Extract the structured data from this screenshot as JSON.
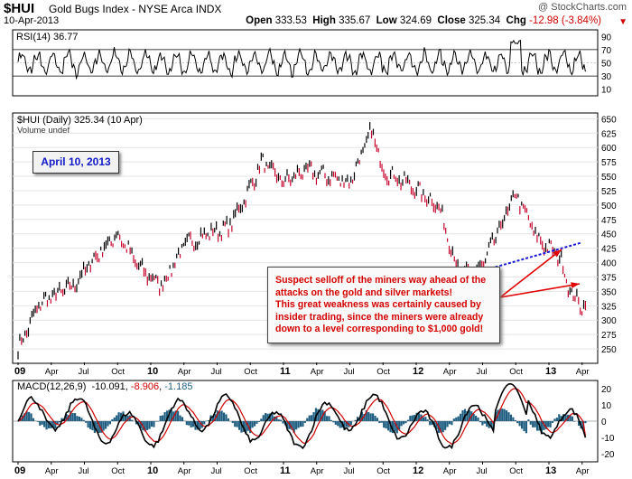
{
  "header": {
    "symbol": "$HUI",
    "name": "Gold Bugs Index - NYSE Arca INDX",
    "date": "10-Apr-2013",
    "open_label": "Open",
    "open": "333.53",
    "high_label": "High",
    "high": "335.67",
    "low_label": "Low",
    "low": "324.69",
    "close_label": "Close",
    "close": "325.34",
    "chg_label": "Chg",
    "chg": "-12.98 (-3.84%)",
    "brand": "@ StockCharts.com",
    "down_arrow_icon": "down-triangle-icon"
  },
  "rsi": {
    "label": "RSI(14) 36.77",
    "ticks": [
      "90",
      "70",
      "50",
      "30",
      "10"
    ],
    "color": "#000000",
    "ylim": [
      0,
      100
    ]
  },
  "price": {
    "label": "$HUI (Daily) 325.34 (10 Apr)",
    "volume_label": "Volume undef",
    "ticks": [
      "650",
      "625",
      "600",
      "575",
      "550",
      "525",
      "500",
      "475",
      "450",
      "425",
      "400",
      "375",
      "350",
      "325",
      "300",
      "275",
      "250"
    ],
    "up_color": "#000000",
    "down_color": "#c8002a",
    "trend_color": "#1a1ad8"
  },
  "macd": {
    "label_prefix": "MACD(12,26,9)",
    "macd_value": "-10.091",
    "signal_value": "-8.906",
    "hist_value": "-1.185",
    "macd_color": "#000000",
    "signal_color": "#d00000",
    "hist_color": "#1f5e80",
    "ticks": [
      "20",
      "10",
      "0",
      "-10",
      "-20"
    ]
  },
  "xaxis": {
    "labels": [
      "09",
      "Apr",
      "Jul",
      "Oct",
      "10",
      "Apr",
      "Jul",
      "Oct",
      "11",
      "Apr",
      "Jul",
      "Oct",
      "12",
      "Apr",
      "Jul",
      "Oct",
      "13",
      "Apr"
    ],
    "bold": [
      "09",
      "10",
      "11",
      "12",
      "13"
    ]
  },
  "date_box": "April 10, 2013",
  "annotation": [
    "Suspect selloff of the miners way ahead of the",
    "attacks on the gold and silver markets!",
    "This great weakness was certainly caused by",
    "insider trading, since the miners were already",
    "down to a level corresponding to $1,000 gold!"
  ],
  "chart_data": {
    "type": "line",
    "title": "$HUI Gold Bugs Index - NYSE Arca INDX",
    "x": [
      "2009-01",
      "2009-03",
      "2009-06",
      "2009-08",
      "2009-10",
      "2009-12",
      "2010-02",
      "2010-04",
      "2010-06",
      "2010-08",
      "2010-10",
      "2010-11",
      "2011-01",
      "2011-03",
      "2011-05",
      "2011-07",
      "2011-09",
      "2011-10",
      "2011-12",
      "2012-03",
      "2012-05",
      "2012-07",
      "2012-10",
      "2012-12",
      "2013-02",
      "2013-03",
      "2013-04"
    ],
    "series": [
      {
        "name": "$HUI (Daily)",
        "values": [
          250,
          330,
          360,
          410,
          450,
          390,
          360,
          430,
          450,
          460,
          530,
          575,
          540,
          560,
          550,
          540,
          630,
          560,
          540,
          500,
          375,
          395,
          520,
          440,
          410,
          345,
          325
        ]
      }
    ],
    "ylim": [
      225,
      660
    ],
    "rsi_ylim": [
      0,
      100
    ],
    "macd_ylim": [
      -25,
      25
    ],
    "trendline": {
      "x": [
        "2012-05",
        "2013-04"
      ],
      "y": [
        375,
        435
      ]
    },
    "last_close": 325.34
  }
}
